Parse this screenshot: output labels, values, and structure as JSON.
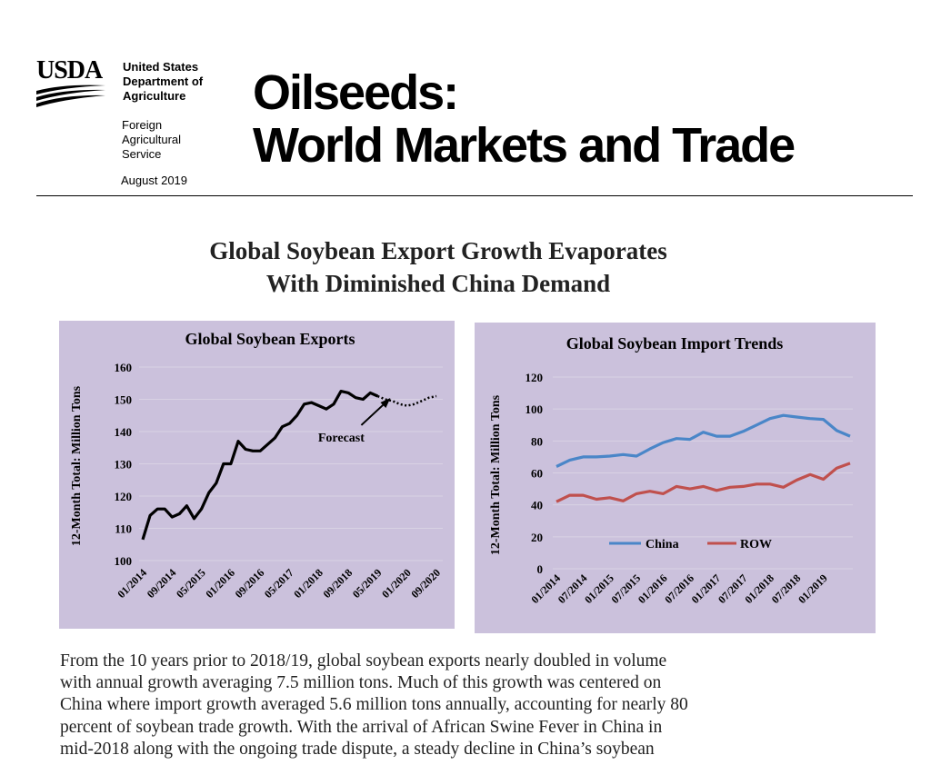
{
  "header": {
    "logo": "USDA",
    "agency": [
      "United States",
      "Department of",
      "Agriculture"
    ],
    "service": [
      "Foreign",
      "Agricultural",
      "Service"
    ],
    "date": "August 2019",
    "title": [
      "Oilseeds:",
      "World Markets and Trade"
    ]
  },
  "headline": [
    "Global Soybean Export Growth Evaporates",
    "With Diminished China Demand"
  ],
  "chart_data": [
    {
      "type": "line",
      "title": "Global Soybean Exports",
      "y_label": "12-Month Total: Million Tons",
      "annotation": "Forecast",
      "categories": [
        "01/2014",
        null,
        null,
        null,
        "09/2014",
        null,
        null,
        null,
        "05/2015",
        null,
        null,
        null,
        "01/2016",
        null,
        null,
        null,
        "09/2016",
        null,
        null,
        null,
        "05/2017",
        null,
        null,
        null,
        "01/2018",
        null,
        null,
        null,
        "09/2018",
        null,
        null,
        null,
        "05/2019",
        null,
        null,
        null,
        "01/2020",
        null,
        null,
        null,
        "09/2020"
      ],
      "series": [
        {
          "color": "#000000",
          "style": "solid",
          "values": [
            106.5,
            114,
            116,
            116,
            113.5,
            114.5,
            117,
            113,
            116,
            121,
            124,
            130,
            130,
            137,
            134.5,
            134,
            134,
            136,
            138,
            141.5,
            142.5,
            145,
            148.5,
            149,
            148,
            147,
            148.5,
            152.5,
            152,
            150.5,
            150,
            152,
            151,
            null,
            null,
            null,
            null,
            null,
            null,
            null,
            null
          ]
        },
        {
          "color": "#000000",
          "style": "dotted",
          "values": [
            null,
            null,
            null,
            null,
            null,
            null,
            null,
            null,
            null,
            null,
            null,
            null,
            null,
            null,
            null,
            null,
            null,
            null,
            null,
            null,
            null,
            null,
            null,
            null,
            null,
            null,
            null,
            null,
            null,
            null,
            null,
            null,
            151,
            150,
            149.5,
            148.5,
            148,
            148.5,
            149.5,
            150.5,
            151
          ]
        }
      ],
      "ylim": [
        100,
        160
      ],
      "yticks": [
        100,
        110,
        120,
        130,
        140,
        150,
        160
      ],
      "grid": true,
      "background": "#cbc1dc"
    },
    {
      "type": "line",
      "title": "Global Soybean Import Trends",
      "y_label": "12-Month Total: Million Tons",
      "categories": [
        "01/2014",
        null,
        "07/2014",
        null,
        "01/2015",
        null,
        "07/2015",
        null,
        "01/2016",
        null,
        "07/2016",
        null,
        "01/2017",
        null,
        "07/2017",
        null,
        "01/2018",
        null,
        "07/2018",
        null,
        "01/2019",
        null,
        null
      ],
      "series": [
        {
          "name": "China",
          "color": "#4a86c8",
          "style": "solid",
          "values": [
            64,
            68,
            70,
            70,
            70.5,
            71.5,
            70.5,
            75,
            79,
            81.5,
            81,
            85.5,
            83,
            83,
            86,
            90,
            94,
            96,
            95,
            94,
            93.5,
            86.5,
            83
          ]
        },
        {
          "name": "ROW",
          "color": "#c0504d",
          "style": "solid",
          "values": [
            42,
            46,
            46,
            43.5,
            44.5,
            42.5,
            47,
            48.5,
            47,
            51.5,
            50,
            51.5,
            49,
            51,
            51.5,
            53,
            53,
            51,
            55.5,
            59,
            56,
            63,
            66
          ]
        }
      ],
      "ylim": [
        0,
        120
      ],
      "yticks": [
        0,
        20,
        40,
        60,
        80,
        100,
        120
      ],
      "grid": true,
      "legend": "bottom",
      "background": "#cbc1dc"
    }
  ],
  "body": [
    "From the 10 years prior to 2018/19, global soybean exports nearly doubled in volume",
    "with annual growth averaging 7.5 million tons.  Much of this growth was centered on",
    "China where import growth averaged 5.6 million tons annually, accounting for nearly 80",
    "percent of soybean trade growth.  With the arrival of African Swine Fever in China in",
    "mid-2018 along with the ongoing trade dispute, a steady decline in China’s soybean"
  ]
}
